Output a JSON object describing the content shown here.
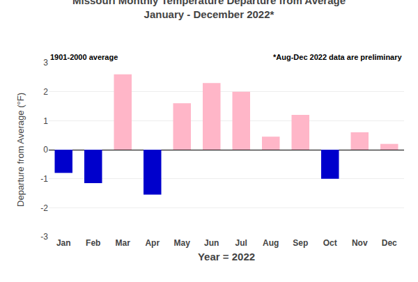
{
  "chart_data": {
    "type": "bar",
    "title": "Missouri Monthly Temperature Departure from Average",
    "subtitle": "January - December 2022*",
    "x_label": "Year = 2022",
    "y_label": "Departure from Average (°F)",
    "annotations": [
      "1901-2000 average",
      "*Aug-Dec 2022 data are preliminary"
    ],
    "categories": [
      "Jan",
      "Feb",
      "Mar",
      "Apr",
      "May",
      "Jun",
      "Jul",
      "Aug",
      "Sep",
      "Oct",
      "Nov",
      "Dec"
    ],
    "values": [
      -0.8,
      -1.15,
      2.6,
      -1.55,
      1.6,
      2.3,
      2.0,
      0.45,
      1.2,
      -1.0,
      0.6,
      0.2
    ],
    "colors": [
      "#0000cc",
      "#0000cc",
      "#ffb6c8",
      "#0000cc",
      "#ffb6c8",
      "#ffb6c8",
      "#ffb6c8",
      "#ffb6c8",
      "#ffb6c8",
      "#0000cc",
      "#ffb6c8",
      "#ffb6c8"
    ],
    "ylim": [
      -3.0,
      3.0
    ],
    "yticks": [
      -3.0,
      -2.0,
      -1.0,
      0.0,
      1.0,
      2.0,
      3.0
    ],
    "grid": true
  }
}
